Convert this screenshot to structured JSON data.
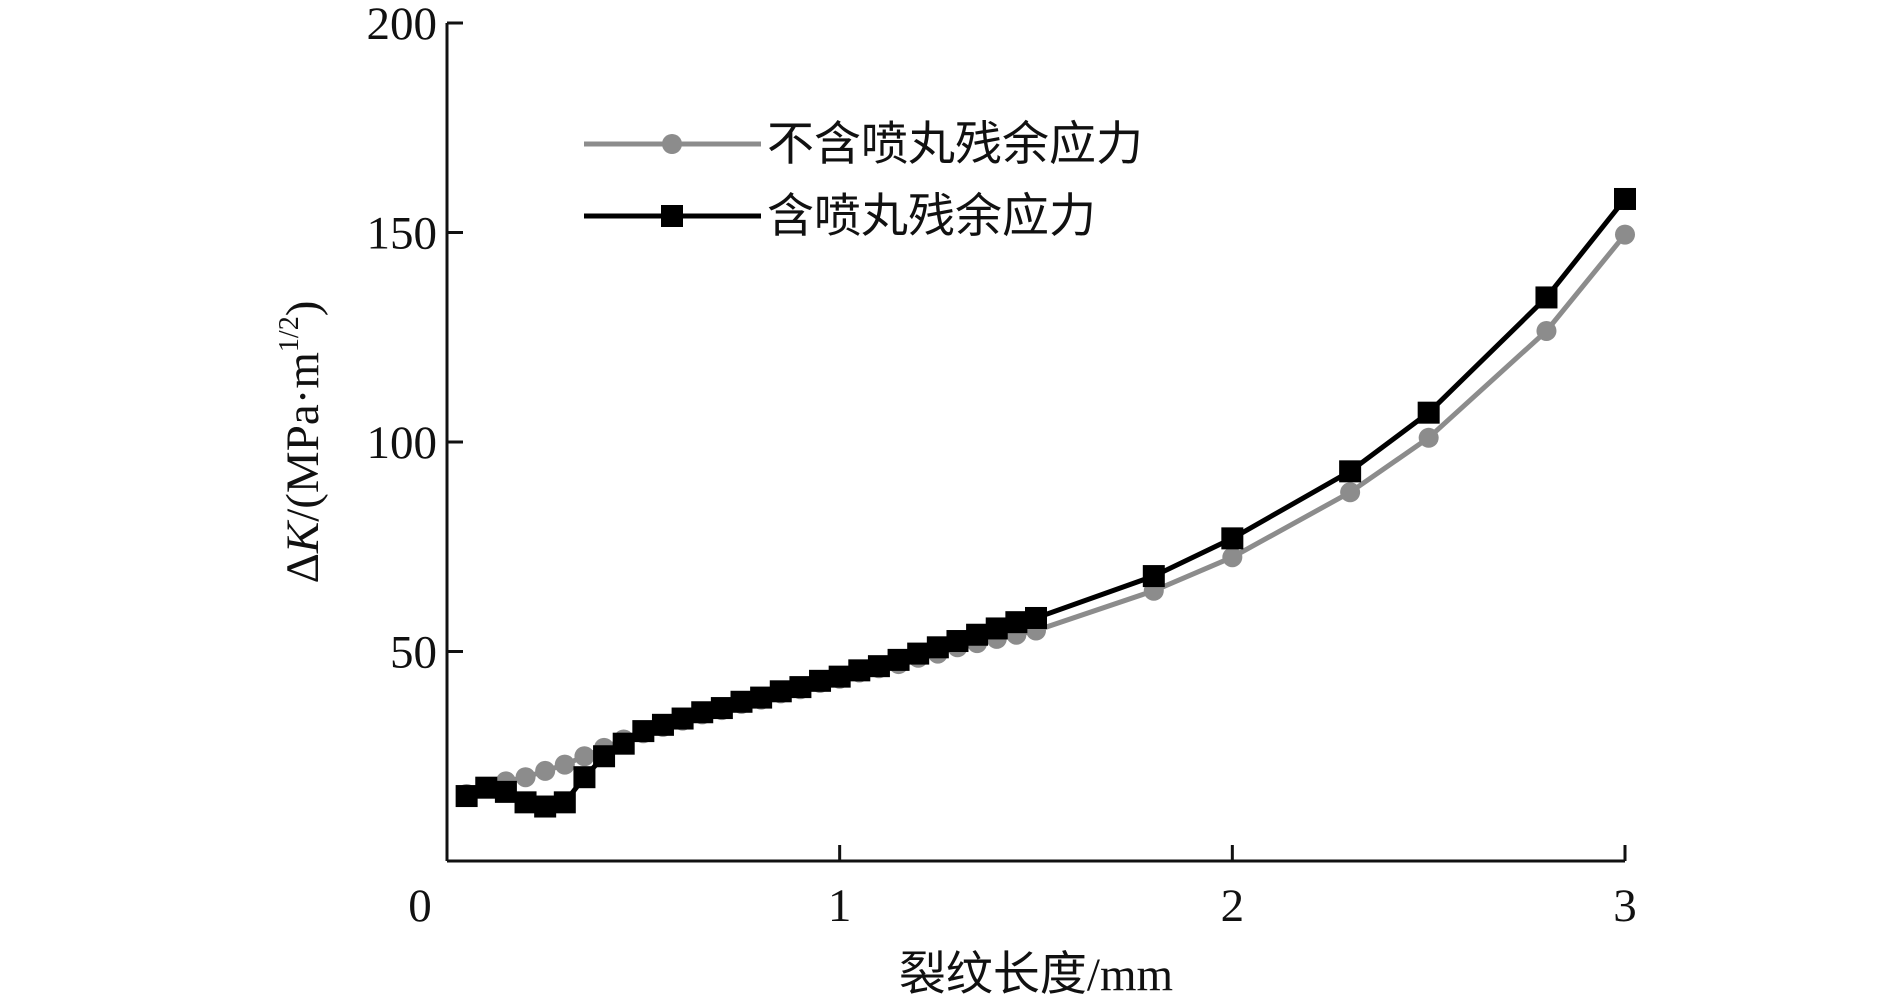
{
  "chart_data": {
    "type": "line",
    "x_label": "裂纹长度/mm",
    "y_label": [
      "Δ",
      "K",
      "/(MPa·m",
      "1/2",
      ")"
    ],
    "x": [
      0.05,
      0.1,
      0.15,
      0.2,
      0.25,
      0.3,
      0.35,
      0.4,
      0.45,
      0.5,
      0.55,
      0.6,
      0.65,
      0.7,
      0.75,
      0.8,
      0.85,
      0.9,
      0.95,
      1.0,
      1.05,
      1.1,
      1.15,
      1.2,
      1.25,
      1.3,
      1.35,
      1.4,
      1.45,
      1.5,
      1.8,
      2.0,
      2.3,
      2.5,
      2.8,
      3.0
    ],
    "series": [
      {
        "name": "不含喷丸残余应力",
        "color": "#8c8c8c",
        "marker": "circle",
        "values": [
          16,
          17.5,
          19,
          20,
          21.5,
          23,
          25,
          27,
          29,
          30.5,
          32,
          33.5,
          35,
          36,
          37.5,
          38.5,
          40,
          41,
          42.5,
          43.5,
          45,
          46,
          47,
          48.5,
          49.5,
          51,
          52,
          53,
          54,
          55,
          64.5,
          72.5,
          88,
          101,
          126.5,
          149.5
        ]
      },
      {
        "name": "含喷丸残余应力",
        "color": "#000000",
        "marker": "square",
        "values": [
          15.5,
          17.5,
          16.5,
          14,
          13,
          14,
          20,
          25,
          28,
          31,
          32.5,
          34,
          35.5,
          36.5,
          38,
          39,
          40.5,
          41.5,
          43,
          44,
          45.5,
          46.5,
          48,
          49.5,
          51,
          52.5,
          54,
          55.5,
          57,
          58,
          68,
          77,
          93,
          107,
          134.5,
          158
        ]
      }
    ],
    "xlim": [
      0,
      3
    ],
    "xticks": [
      0,
      1,
      2,
      3
    ],
    "ylim": [
      0,
      200
    ],
    "yticks": [
      50,
      100,
      150,
      200
    ]
  }
}
